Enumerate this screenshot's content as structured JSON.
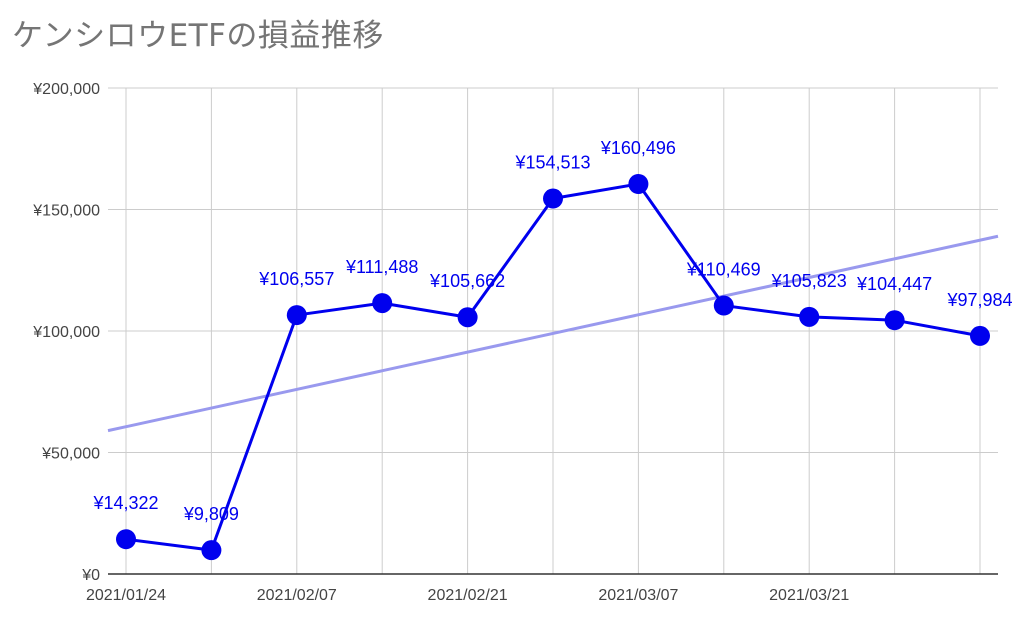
{
  "chart_data": {
    "type": "line",
    "title": "ケンシロウETFの損益推移",
    "xlabel": "",
    "ylabel": "",
    "x": [
      "2021/01/24",
      "2021/01/31",
      "2021/02/07",
      "2021/02/14",
      "2021/02/21",
      "2021/02/28",
      "2021/03/07",
      "2021/03/14",
      "2021/03/21",
      "2021/03/28",
      "2021/04/04"
    ],
    "x_dates": [
      "2021-01-24",
      "2021-01-31",
      "2021-02-07",
      "2021-02-14",
      "2021-02-21",
      "2021-02-28",
      "2021-03-07",
      "2021-03-14",
      "2021-03-21",
      "2021-03-28",
      "2021-04-04"
    ],
    "series": [
      {
        "values": [
          14322,
          9809,
          106557,
          111488,
          105662,
          154513,
          160496,
          110469,
          105823,
          104447,
          97984
        ],
        "labels": [
          "¥14,322",
          "¥9,809",
          "¥106,557",
          "¥111,488",
          "¥105,662",
          "¥154,513",
          "¥160,496",
          "¥110,469",
          "¥105,823",
          "¥104,447",
          "¥97,984"
        ],
        "color": "#0000ee"
      }
    ],
    "trendline": {
      "x_dates": [
        "2021-01-24",
        "2021-04-05"
      ],
      "values": [
        59000,
        139000
      ],
      "color": "#9999ee"
    },
    "x_ticks": [
      "2021/01/24",
      "2021/02/07",
      "2021/02/21",
      "2021/03/07",
      "2021/03/21"
    ],
    "y_ticks": [
      "¥0",
      "¥50,000",
      "¥100,000",
      "¥150,000",
      "¥200,000"
    ],
    "ylim": [
      0,
      200000
    ],
    "grid": true,
    "legend": "none"
  }
}
